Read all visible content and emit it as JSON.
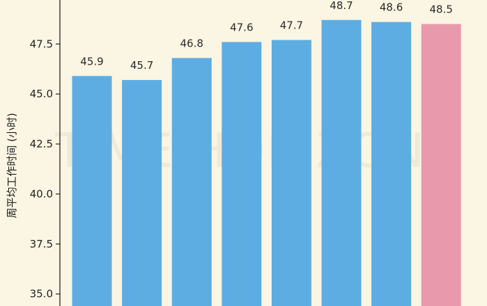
{
  "chart_data": {
    "type": "bar",
    "categories": [
      "",
      "",
      "",
      "",
      "",
      "",
      "",
      ""
    ],
    "values": [
      45.9,
      45.7,
      46.8,
      47.6,
      47.7,
      48.7,
      48.6,
      48.5
    ],
    "value_labels": [
      "45.9",
      "45.7",
      "46.8",
      "47.6",
      "47.7",
      "48.7",
      "48.6",
      "48.5"
    ],
    "title": "",
    "xlabel": "",
    "ylabel": "周平均工作时间 (小时)",
    "ylim": [
      34.4,
      49.7
    ],
    "yticks": [
      35.0,
      37.5,
      40.0,
      42.5,
      45.0,
      47.5
    ],
    "ytick_labels": [
      "35.0",
      "37.5",
      "40.0",
      "42.5",
      "45.0",
      "47.5"
    ],
    "grid": false,
    "bar_color": "#5dade2",
    "highlight_color": "#e89aac",
    "highlight_index": 7,
    "watermark": "TIME HORIZON"
  },
  "colors": {
    "background": "#fbf5e3",
    "axis": "#222222"
  }
}
